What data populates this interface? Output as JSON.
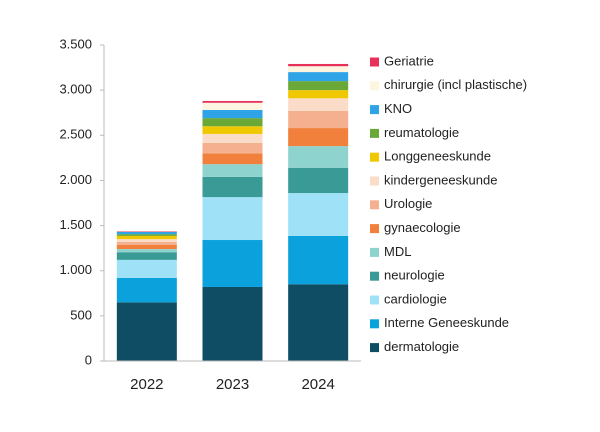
{
  "chart_data": {
    "type": "stacked_bar",
    "categories": [
      "2022",
      "2023",
      "2024"
    ],
    "series": [
      {
        "name": "dermatologie",
        "color": "#0e4d64",
        "values": [
          650,
          820,
          850
        ]
      },
      {
        "name": "Interne Geneeskunde",
        "color": "#0aa1dd",
        "values": [
          270,
          520,
          535
        ]
      },
      {
        "name": "cardiologie",
        "color": "#9fe2f8",
        "values": [
          200,
          475,
          475
        ]
      },
      {
        "name": "neurologie",
        "color": "#3a9a96",
        "values": [
          85,
          225,
          280
        ]
      },
      {
        "name": "MDL",
        "color": "#8fd3cf",
        "values": [
          35,
          140,
          240
        ]
      },
      {
        "name": "gynaecologie",
        "color": "#f0803c",
        "values": [
          45,
          120,
          200
        ]
      },
      {
        "name": "Urologie",
        "color": "#f5b08f",
        "values": [
          35,
          115,
          190
        ]
      },
      {
        "name": "kindergeneeskunde",
        "color": "#fadcc8",
        "values": [
          30,
          100,
          140
        ]
      },
      {
        "name": "Longgeneeskunde",
        "color": "#f0c800",
        "values": [
          35,
          85,
          90
        ]
      },
      {
        "name": "reumatologie",
        "color": "#6aa838",
        "values": [
          20,
          90,
          100
        ]
      },
      {
        "name": "KNO",
        "color": "#2ea3e8",
        "values": [
          25,
          90,
          100
        ]
      },
      {
        "name": "chirurgie (incl plastische)",
        "color": "#fdf5e0",
        "values": [
          5,
          80,
          65
        ]
      },
      {
        "name": "Geriatrie",
        "color": "#e8305a",
        "values": [
          5,
          20,
          25
        ]
      }
    ],
    "ylim": [
      0,
      3500
    ],
    "yticks": [
      0,
      500,
      {
        "value": 1000,
        "label": "1.000"
      },
      {
        "value": 1500,
        "label": "1.500"
      },
      {
        "value": 2000,
        "label": "2.000"
      },
      {
        "value": 2500,
        "label": "2.500"
      },
      {
        "value": 3000,
        "label": "3.000"
      },
      {
        "value": 3500,
        "label": "3.500"
      }
    ],
    "legend": "right"
  }
}
